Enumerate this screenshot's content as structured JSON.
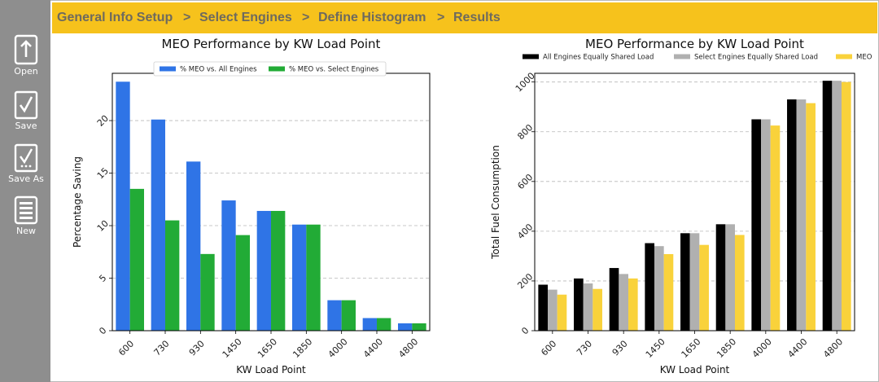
{
  "sidebar": {
    "items": [
      {
        "label": "Open",
        "icon": "open-file-icon"
      },
      {
        "label": "Save",
        "icon": "save-check-icon"
      },
      {
        "label": "Save As",
        "icon": "save-as-icon"
      },
      {
        "label": "New",
        "icon": "new-document-icon"
      }
    ]
  },
  "breadcrumb": {
    "steps": [
      "General Info Setup",
      "Select Engines",
      "Define Histogram",
      "Results"
    ],
    "separator": ">"
  },
  "colors": {
    "breadcrumb_bg": "#f6c21c",
    "sidebar_bg": "#8e8e8e",
    "blue": "#2f74e6",
    "green": "#22ab36",
    "black": "#000000",
    "grey": "#b0b0b0",
    "yellow": "#f9d23b"
  },
  "chart_data": [
    {
      "type": "bar",
      "title": "MEO Performance by KW Load Point",
      "xlabel": "KW Load Point",
      "ylabel": "Percentage Saving",
      "categories": [
        "600",
        "730",
        "930",
        "1450",
        "1650",
        "1850",
        "4000",
        "4400",
        "4800"
      ],
      "series": [
        {
          "name": "% MEO vs. All Engines",
          "values": [
            23.7,
            20.1,
            16.1,
            12.4,
            11.4,
            10.1,
            2.9,
            1.2,
            0.7
          ]
        },
        {
          "name": "% MEO vs. Select Engines",
          "values": [
            13.5,
            10.5,
            7.3,
            9.1,
            11.4,
            10.1,
            2.9,
            1.2,
            0.7
          ]
        }
      ],
      "ylim": [
        0,
        24.5
      ],
      "yticks": [
        0,
        5,
        10,
        15,
        20
      ],
      "grid": "horizontal dashed",
      "legend": "top-center"
    },
    {
      "type": "bar",
      "title": "MEO Performance by KW Load Point",
      "xlabel": "KW Load Point",
      "ylabel": "Total Fuel Consumption",
      "categories": [
        "600",
        "730",
        "930",
        "1450",
        "1650",
        "1850",
        "4000",
        "4400",
        "4800"
      ],
      "series": [
        {
          "name": "All Engines Equally Shared Load",
          "values": [
            185,
            210,
            252,
            352,
            392,
            428,
            850,
            930,
            1005
          ]
        },
        {
          "name": "Select Engines Equally Shared Load",
          "values": [
            165,
            190,
            228,
            340,
            392,
            428,
            850,
            930,
            1005
          ]
        },
        {
          "name": "MEO",
          "values": [
            145,
            168,
            210,
            308,
            345,
            385,
            825,
            915,
            1000
          ]
        }
      ],
      "ylim": [
        0,
        1035
      ],
      "yticks": [
        0,
        200,
        400,
        600,
        800,
        1000
      ],
      "grid": "horizontal dashed",
      "legend": "top-center"
    }
  ]
}
